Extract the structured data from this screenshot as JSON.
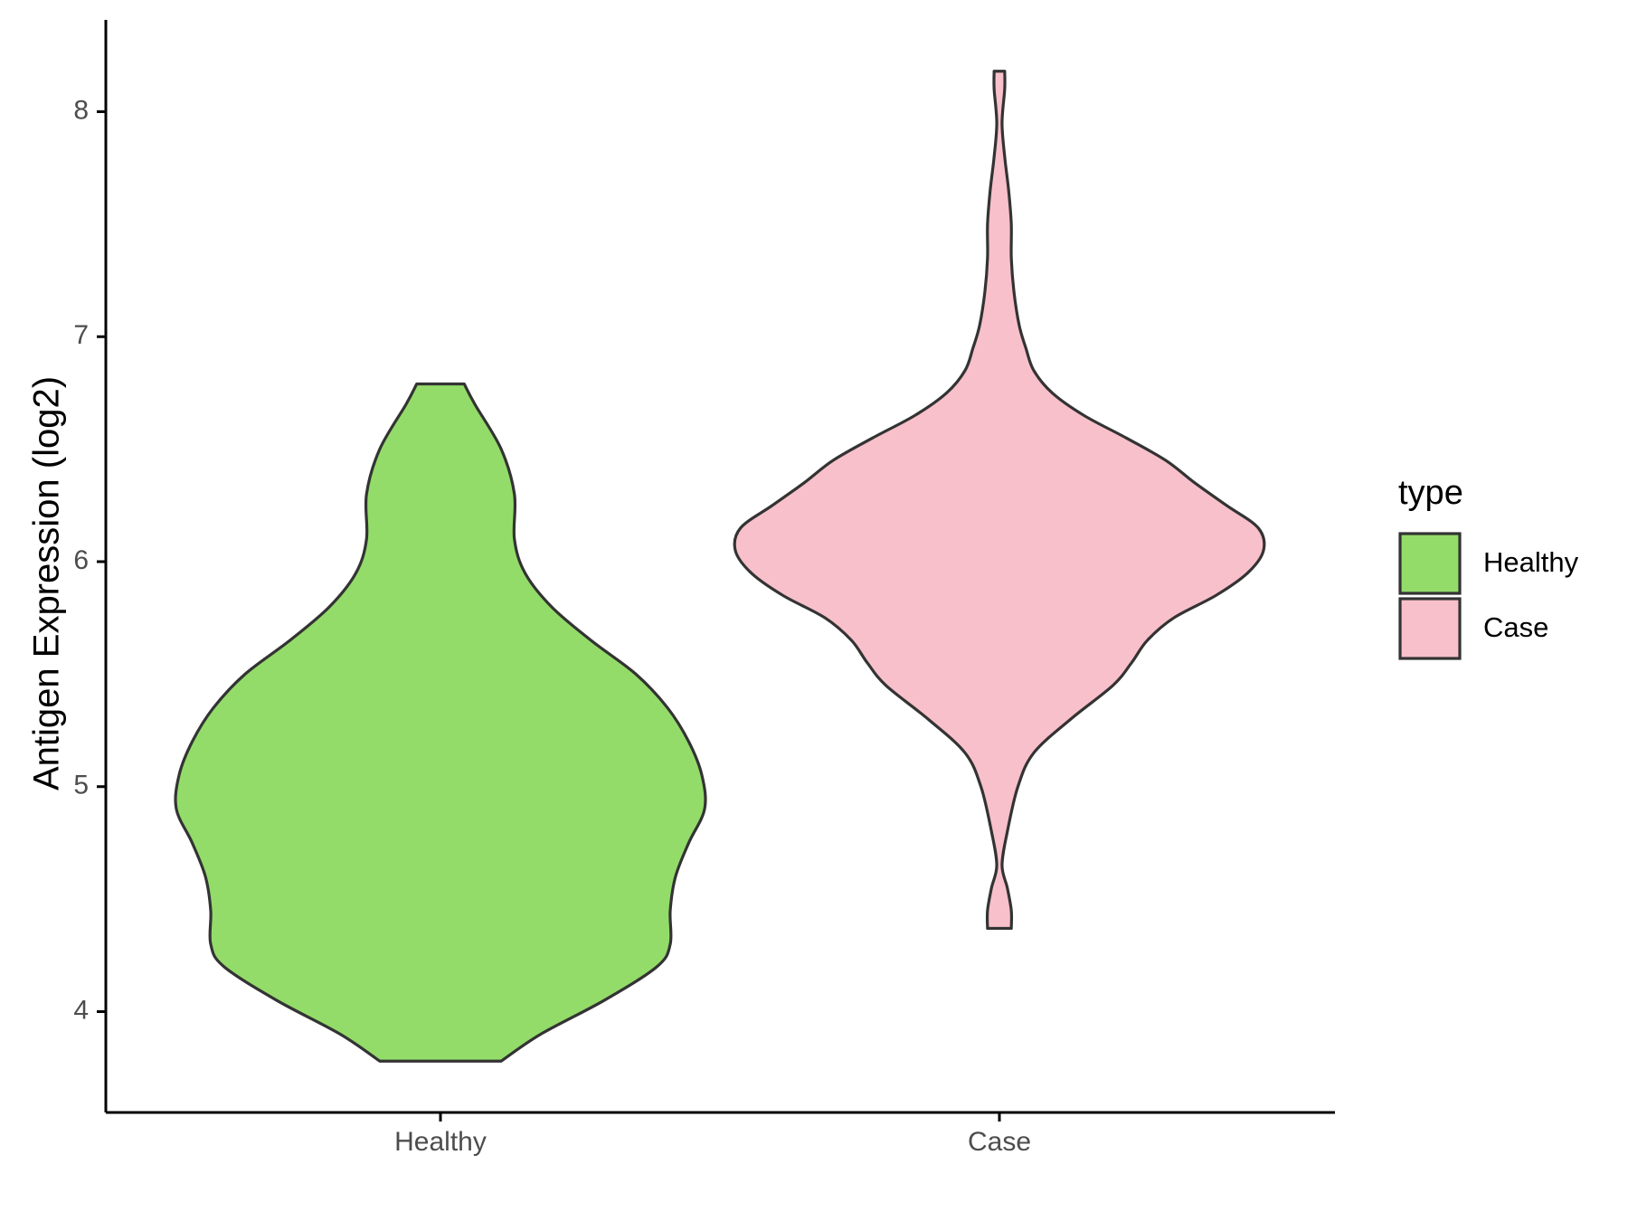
{
  "chart_data": {
    "type": "violin",
    "title": "",
    "xlabel": "",
    "ylabel": "Antigen Expression (log2)",
    "categories": [
      "Healthy",
      "Case"
    ],
    "ylim": [
      3.55,
      8.4
    ],
    "yticks": [
      4,
      5,
      6,
      7,
      8
    ],
    "grid": false,
    "legend": {
      "title": "type",
      "position": "right",
      "entries": [
        {
          "label": "Healthy",
          "color": "#93dc6a"
        },
        {
          "label": "Case",
          "color": "#f8c0cb"
        }
      ]
    },
    "series": [
      {
        "category": "Healthy",
        "color": "#93dc6a",
        "y_min": 3.78,
        "y_max": 6.79,
        "profile": [
          [
            3.78,
            0.23
          ],
          [
            3.9,
            0.38
          ],
          [
            4.05,
            0.62
          ],
          [
            4.2,
            0.82
          ],
          [
            4.3,
            0.87
          ],
          [
            4.45,
            0.87
          ],
          [
            4.6,
            0.89
          ],
          [
            4.75,
            0.94
          ],
          [
            4.9,
            1.0
          ],
          [
            5.05,
            0.99
          ],
          [
            5.2,
            0.94
          ],
          [
            5.35,
            0.86
          ],
          [
            5.5,
            0.74
          ],
          [
            5.65,
            0.57
          ],
          [
            5.8,
            0.42
          ],
          [
            5.95,
            0.32
          ],
          [
            6.1,
            0.28
          ],
          [
            6.3,
            0.28
          ],
          [
            6.5,
            0.23
          ],
          [
            6.7,
            0.13
          ],
          [
            6.79,
            0.09
          ]
        ]
      },
      {
        "category": "Case",
        "color": "#f8c0cb",
        "y_min": 4.37,
        "y_max": 8.18,
        "profile": [
          [
            4.37,
            0.045
          ],
          [
            4.45,
            0.045
          ],
          [
            4.55,
            0.03
          ],
          [
            4.65,
            0.01
          ],
          [
            4.8,
            0.03
          ],
          [
            5.0,
            0.07
          ],
          [
            5.15,
            0.13
          ],
          [
            5.3,
            0.27
          ],
          [
            5.45,
            0.43
          ],
          [
            5.55,
            0.5
          ],
          [
            5.65,
            0.56
          ],
          [
            5.75,
            0.66
          ],
          [
            5.85,
            0.82
          ],
          [
            5.95,
            0.94
          ],
          [
            6.05,
            1.0
          ],
          [
            6.15,
            0.98
          ],
          [
            6.25,
            0.86
          ],
          [
            6.35,
            0.74
          ],
          [
            6.45,
            0.63
          ],
          [
            6.55,
            0.48
          ],
          [
            6.65,
            0.32
          ],
          [
            6.75,
            0.2
          ],
          [
            6.85,
            0.13
          ],
          [
            6.95,
            0.1
          ],
          [
            7.05,
            0.075
          ],
          [
            7.2,
            0.055
          ],
          [
            7.35,
            0.045
          ],
          [
            7.5,
            0.045
          ],
          [
            7.65,
            0.035
          ],
          [
            7.8,
            0.02
          ],
          [
            7.95,
            0.01
          ],
          [
            8.1,
            0.02
          ],
          [
            8.18,
            0.02
          ]
        ]
      }
    ]
  }
}
